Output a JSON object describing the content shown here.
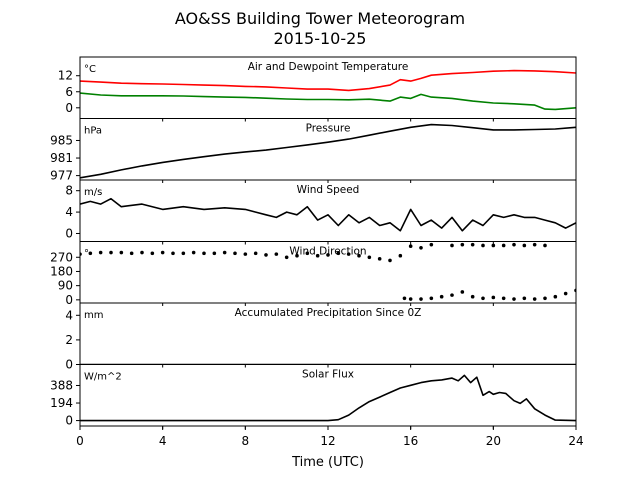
{
  "figure": {
    "title_line1": "AO&SS Building Tower Meteorogram",
    "title_line2": "2015-10-25",
    "xlabel": "Time (UTC)",
    "x_ticks": [
      "0",
      "4",
      "8",
      "12",
      "16",
      "20",
      "24"
    ]
  },
  "chart_data": [
    {
      "type": "line",
      "title": "Air and Dewpoint Temperature",
      "unit": "°C",
      "ylim": [
        -4,
        19
      ],
      "y_ticks": [
        12,
        6,
        0
      ],
      "grid": false,
      "series": [
        {
          "color": "#ff0000",
          "x": [
            0,
            1,
            2,
            3,
            4,
            5,
            6,
            7,
            8,
            9,
            10,
            11,
            12,
            13,
            14,
            15,
            15.5,
            16,
            16.5,
            17,
            18,
            19,
            20,
            21,
            22,
            23,
            24
          ],
          "y": [
            10,
            9.6,
            9.2,
            9.0,
            8.9,
            8.7,
            8.5,
            8.3,
            8.0,
            7.8,
            7.4,
            7.0,
            7.0,
            6.5,
            7.2,
            8.5,
            10.5,
            10.0,
            11.0,
            12.2,
            12.8,
            13.2,
            13.7,
            13.9,
            13.8,
            13.5,
            13.0
          ]
        },
        {
          "color": "#008000",
          "x": [
            0,
            1,
            2,
            3,
            4,
            5,
            6,
            7,
            8,
            9,
            10,
            11,
            12,
            13,
            14,
            15,
            15.5,
            16,
            16.5,
            17,
            18,
            19,
            20,
            21,
            22,
            22.5,
            23,
            24
          ],
          "y": [
            5.5,
            4.8,
            4.5,
            4.5,
            4.5,
            4.4,
            4.2,
            4.0,
            3.9,
            3.6,
            3.3,
            3.1,
            3.1,
            3.0,
            3.2,
            2.5,
            4.0,
            3.5,
            5.0,
            4.0,
            3.5,
            2.5,
            1.8,
            1.5,
            1.0,
            -0.5,
            -0.6,
            0.0
          ]
        }
      ]
    },
    {
      "type": "line",
      "title": "Pressure",
      "unit": "hPa",
      "ylim": [
        976,
        990
      ],
      "y_ticks": [
        985,
        981,
        977
      ],
      "grid": false,
      "series": [
        {
          "color": "#000000",
          "x": [
            0,
            1,
            2,
            3,
            4,
            5,
            6,
            7,
            8,
            9,
            10,
            11,
            12,
            13,
            14,
            15,
            16,
            17,
            18,
            19,
            20,
            21,
            22,
            23,
            24
          ],
          "y": [
            976.5,
            977.3,
            978.3,
            979.2,
            980.0,
            980.7,
            981.3,
            981.9,
            982.4,
            982.8,
            983.4,
            984.0,
            984.6,
            985.3,
            986.2,
            987.1,
            988.0,
            988.6,
            988.4,
            987.9,
            987.4,
            987.4,
            987.5,
            987.6,
            988.0
          ]
        }
      ]
    },
    {
      "type": "line",
      "title": "Wind Speed",
      "unit": "m/s",
      "ylim": [
        -1.5,
        10
      ],
      "y_ticks": [
        8,
        4,
        0
      ],
      "grid": false,
      "series": [
        {
          "color": "#000000",
          "x": [
            0,
            0.5,
            1,
            1.5,
            2,
            3,
            4,
            5,
            6,
            7,
            8,
            8.5,
            9,
            9.5,
            10,
            10.5,
            11,
            11.5,
            12,
            12.5,
            13,
            13.5,
            14,
            14.5,
            15,
            15.5,
            16,
            16.5,
            17,
            17.5,
            18,
            18.5,
            19,
            19.5,
            20,
            20.5,
            21,
            21.5,
            22,
            22.5,
            23,
            23.5,
            24
          ],
          "y": [
            5.5,
            6.0,
            5.5,
            6.5,
            5.0,
            5.5,
            4.5,
            5.0,
            4.5,
            4.8,
            4.5,
            4.0,
            3.5,
            3.0,
            4.0,
            3.5,
            5.0,
            2.5,
            3.5,
            1.5,
            3.5,
            2.0,
            3.0,
            1.5,
            2.0,
            0.5,
            4.5,
            1.5,
            2.5,
            1.0,
            3.0,
            0.5,
            2.5,
            1.5,
            3.5,
            3.0,
            3.5,
            3.0,
            3.0,
            2.5,
            2.0,
            1.0,
            2.0
          ]
        }
      ]
    },
    {
      "type": "scatter",
      "title": "Wind Direction",
      "unit": "°",
      "ylim": [
        -20,
        370
      ],
      "y_ticks": [
        270,
        180,
        90,
        0
      ],
      "grid": false,
      "series": [
        {
          "color": "#000000",
          "x": [
            0,
            0.5,
            1,
            1.5,
            2,
            2.5,
            3,
            3.5,
            4,
            4.5,
            5,
            5.5,
            6,
            6.5,
            7,
            7.5,
            8,
            8.5,
            9,
            9.5,
            10,
            10.5,
            11,
            11.5,
            12,
            12.5,
            13,
            13.5,
            14,
            14.5,
            15,
            15.5,
            16,
            16.5,
            17,
            18,
            18.5,
            19,
            19.5,
            20,
            20.5,
            21,
            21.5,
            22,
            22.5
          ],
          "y": [
            290,
            295,
            300,
            300,
            300,
            295,
            300,
            295,
            300,
            295,
            295,
            300,
            295,
            295,
            300,
            295,
            290,
            295,
            285,
            290,
            270,
            280,
            295,
            280,
            285,
            295,
            290,
            280,
            270,
            260,
            250,
            280,
            340,
            330,
            350,
            345,
            350,
            350,
            345,
            345,
            345,
            350,
            345,
            350,
            345
          ]
        },
        {
          "color": "#000000",
          "x": [
            15.7,
            16,
            16.5,
            17,
            17.5,
            18,
            18.5,
            19,
            19.5,
            20,
            20.5,
            21,
            21.5,
            22,
            22.5,
            23,
            23.5,
            24
          ],
          "y": [
            10,
            5,
            5,
            10,
            20,
            30,
            50,
            20,
            10,
            15,
            10,
            5,
            10,
            5,
            10,
            20,
            40,
            60
          ]
        }
      ]
    },
    {
      "type": "line",
      "title": "Accumulated Precipitation Since 0Z",
      "unit": "mm",
      "ylim": [
        0,
        5
      ],
      "y_ticks": [
        4,
        2,
        0
      ],
      "grid": false,
      "series": [
        {
          "color": "#000000",
          "x": [
            0,
            24
          ],
          "y": [
            0,
            0
          ]
        }
      ]
    },
    {
      "type": "line",
      "title": "Solar Flux",
      "unit": "W/m^2",
      "ylim": [
        -60,
        620
      ],
      "y_ticks": [
        388,
        194,
        0
      ],
      "grid": false,
      "series": [
        {
          "color": "#000000",
          "x": [
            0,
            12,
            12.5,
            13,
            13.5,
            14,
            14.5,
            15,
            15.5,
            16,
            16.5,
            17,
            17.5,
            18,
            18.3,
            18.6,
            18.9,
            19.2,
            19.5,
            19.8,
            20,
            20.3,
            20.6,
            21,
            21.3,
            21.6,
            22,
            22.5,
            23,
            24
          ],
          "y": [
            0,
            0,
            10,
            60,
            140,
            210,
            260,
            310,
            360,
            390,
            420,
            440,
            450,
            470,
            440,
            500,
            420,
            480,
            280,
            320,
            290,
            310,
            300,
            220,
            190,
            240,
            130,
            60,
            5,
            0
          ]
        }
      ]
    }
  ]
}
